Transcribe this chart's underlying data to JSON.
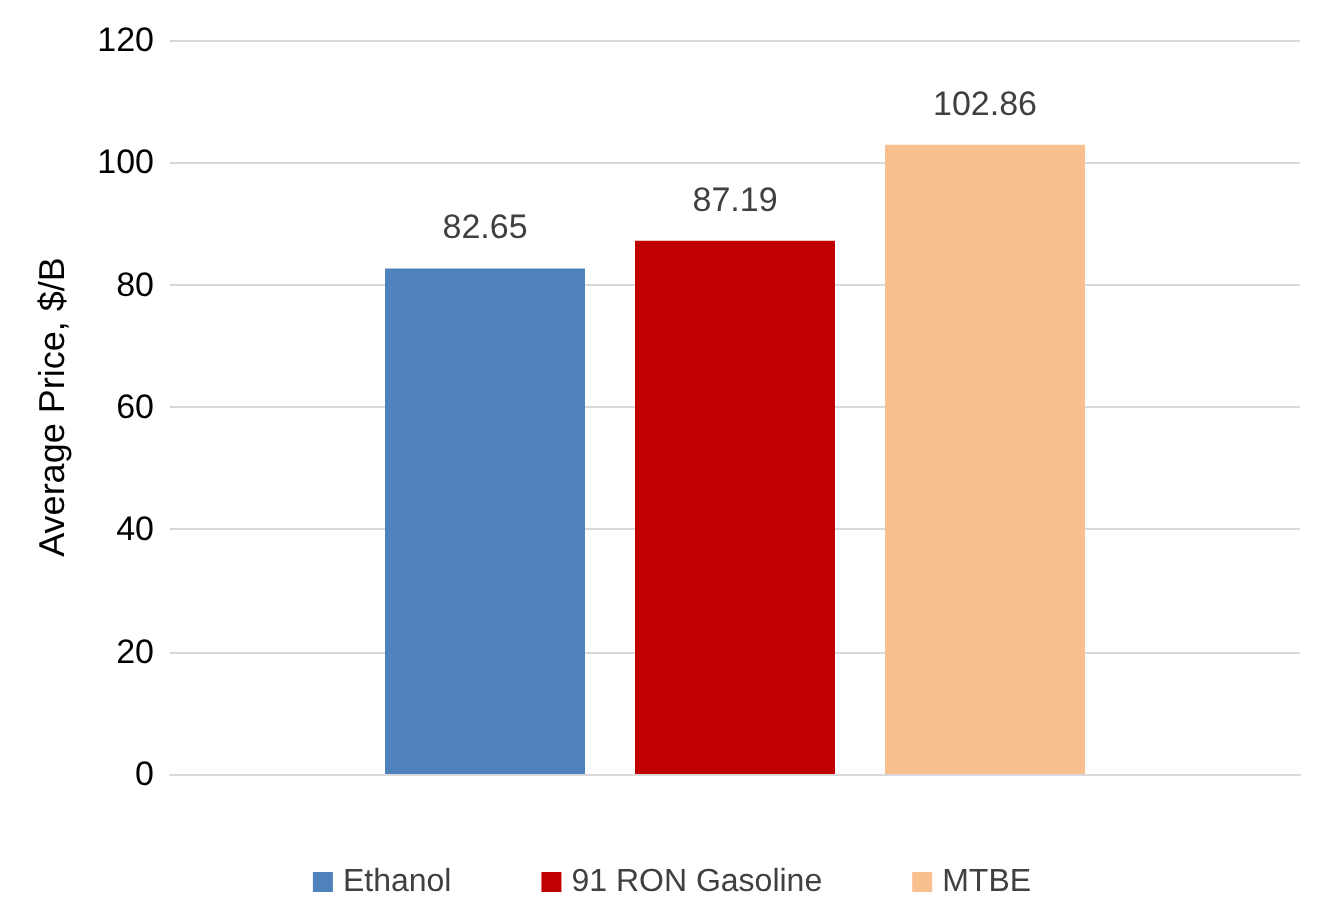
{
  "chart_data": {
    "type": "bar",
    "ylabel": "Average Price, $/B",
    "categories": [
      null
    ],
    "series": [
      {
        "name": "Ethanol",
        "color": "#4f81bd",
        "values": [
          82.65
        ]
      },
      {
        "name": "91 RON Gasoline",
        "color": "#c00000",
        "values": [
          87.19
        ]
      },
      {
        "name": "MTBE",
        "color": "#f9c08f",
        "values": [
          102.86
        ]
      }
    ],
    "ylim": [
      0,
      120
    ],
    "yticks": [
      0,
      20,
      40,
      60,
      80,
      100,
      120
    ],
    "grid": "y",
    "legend": "bottom",
    "data_labels": true
  }
}
